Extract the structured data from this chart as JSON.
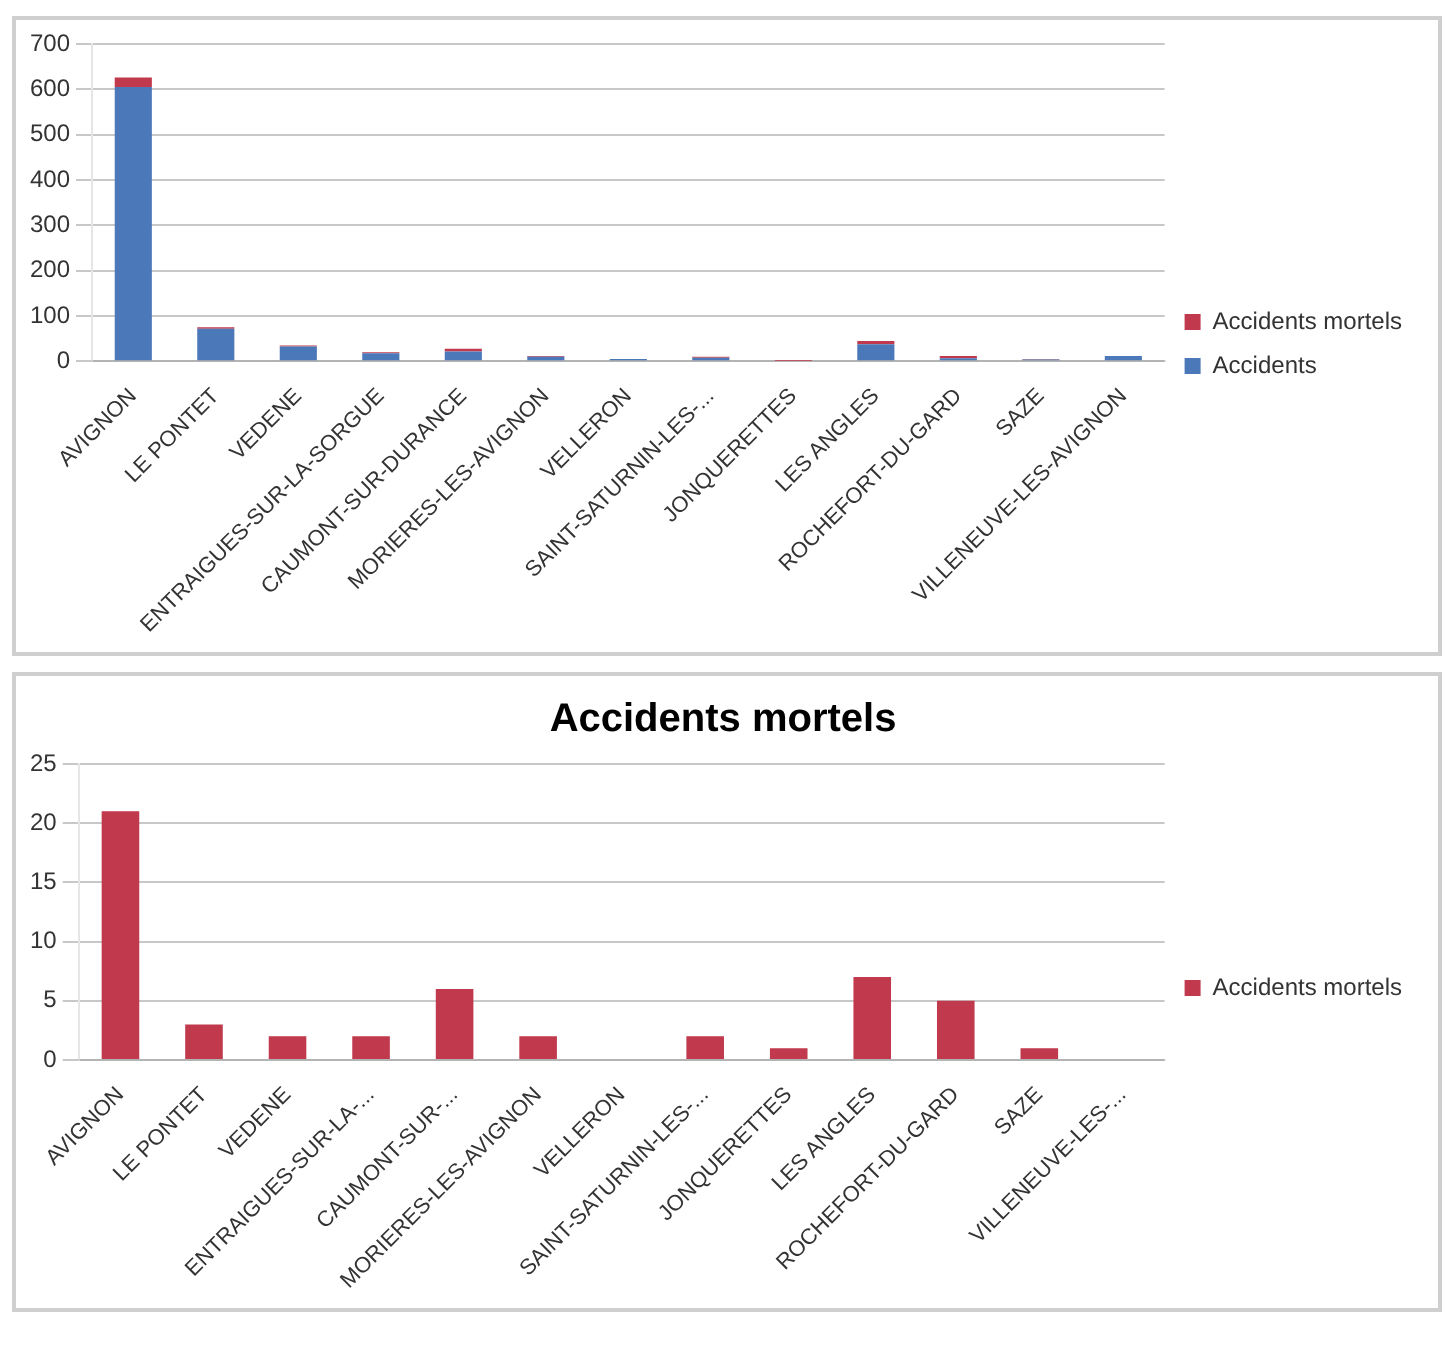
{
  "chart_data": [
    {
      "type": "bar",
      "categories": [
        "AVIGNON",
        "LE PONTET",
        "VEDENE",
        "ENTRAIGUES-SUR-LA-SORGUE",
        "CAUMONT-SUR-DURANCE",
        "MORIERES-LES-AVIGNON",
        "VELLERON",
        "SAINT-SATURNIN-LES-...",
        "JONQUERETTES",
        "LES ANGLES",
        "ROCHEFORT-DU-GARD",
        "SAZE",
        "VILLENEUVE-LES-AVIGNON"
      ],
      "series": [
        {
          "name": "Accidents",
          "color": "#4a78b8",
          "values": [
            605,
            72,
            33,
            18,
            22,
            10,
            5,
            8,
            null,
            38,
            7,
            4,
            12
          ]
        },
        {
          "name": "Accidents mortels",
          "color": "#c0394d",
          "values": [
            21,
            3,
            2,
            2,
            6,
            2,
            0,
            2,
            1,
            7,
            5,
            1,
            0
          ]
        }
      ],
      "stacked": true,
      "ylim": [
        0,
        700
      ],
      "yticks": [
        0,
        100,
        200,
        300,
        400,
        500,
        600,
        700
      ],
      "grid": "y",
      "legend": "right"
    },
    {
      "type": "bar",
      "title": "Accidents mortels",
      "categories": [
        "AVIGNON",
        "LE PONTET",
        "VEDENE",
        "ENTRAIGUES-SUR-LA-...",
        "CAUMONT-SUR-...",
        "MORIERES-LES-AVIGNON",
        "VELLERON",
        "SAINT-SATURNIN-LES-...",
        "JONQUERETTES",
        "LES ANGLES",
        "ROCHEFORT-DU-GARD",
        "SAZE",
        "VILLENEUVE-LES-..."
      ],
      "series": [
        {
          "name": "Accidents mortels",
          "color": "#c0394d",
          "values": [
            21,
            3,
            2,
            2,
            6,
            2,
            0,
            2,
            1,
            7,
            5,
            1,
            0
          ]
        }
      ],
      "ylim": [
        0,
        25
      ],
      "yticks": [
        0,
        5,
        10,
        15,
        20,
        25
      ],
      "grid": "y",
      "legend": "right"
    }
  ]
}
